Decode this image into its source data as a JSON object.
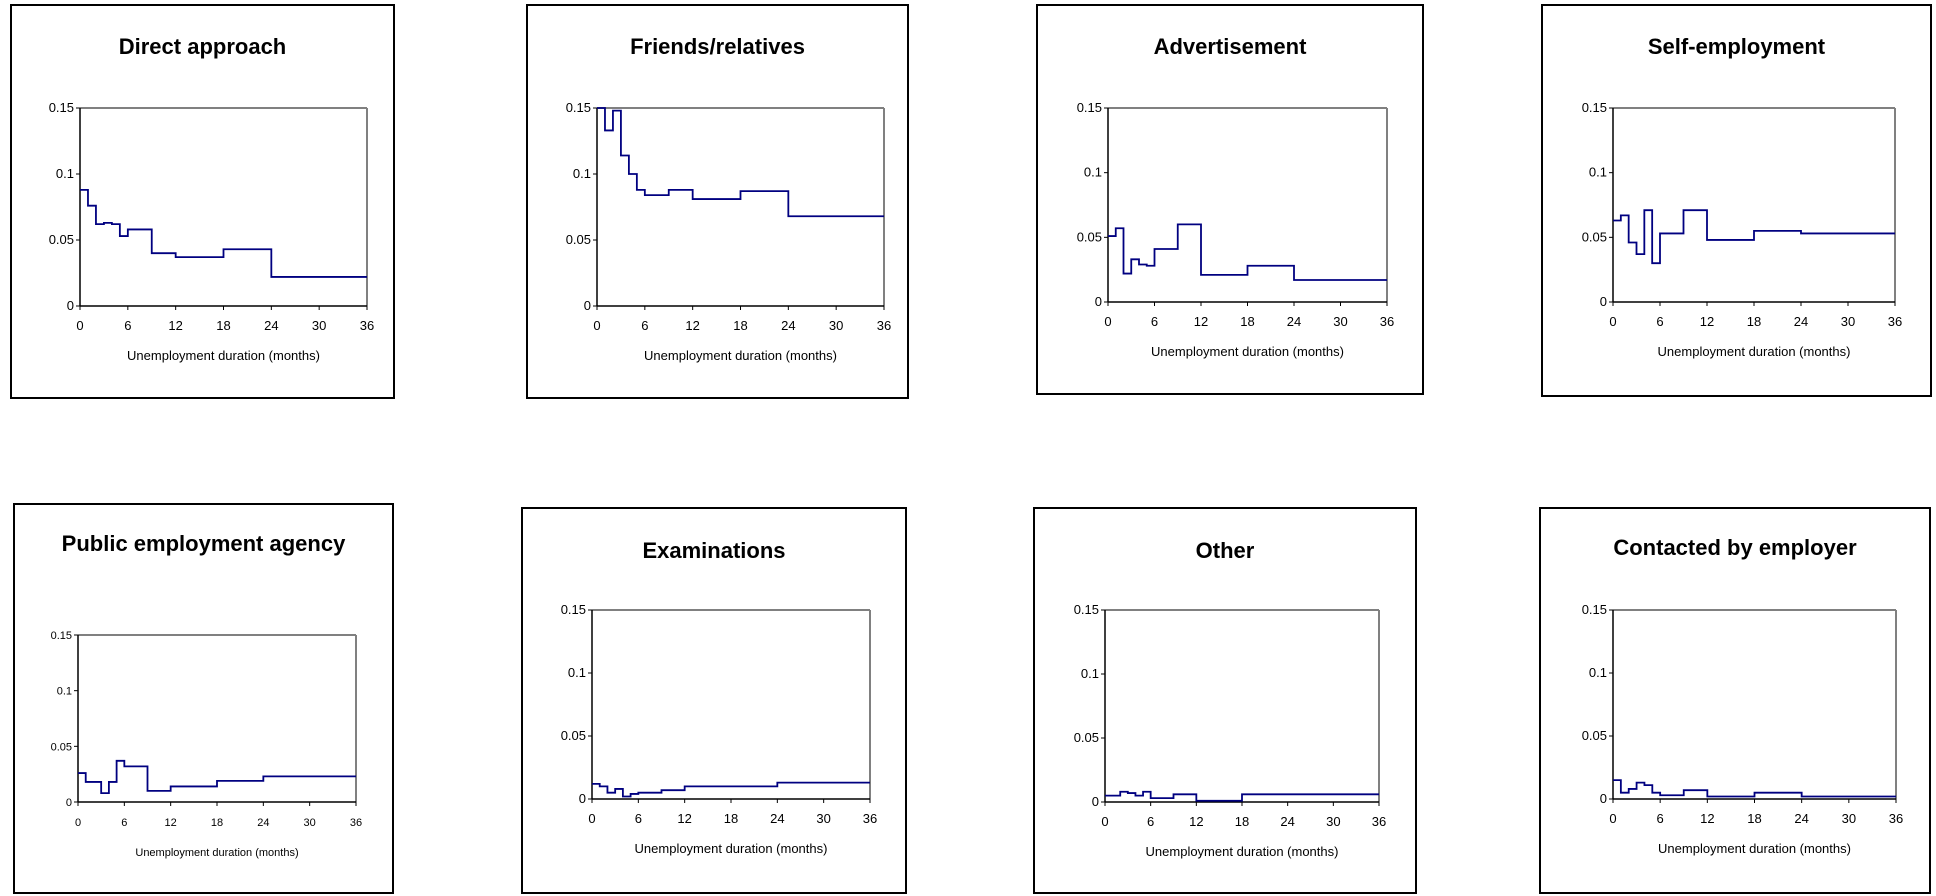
{
  "chart_data": [
    {
      "type": "line",
      "title": "Direct approach",
      "xlabel": "Unemployment duration (months)",
      "ylabel": "",
      "xlim": [
        0,
        36
      ],
      "ylim": [
        0,
        0.15
      ],
      "xticks": [
        "0",
        "6",
        "12",
        "18",
        "24",
        "30",
        "36"
      ],
      "yticks": [
        "0",
        "0.05",
        "0.1",
        "0.15"
      ],
      "step": true,
      "series": [
        {
          "x": [
            0,
            1,
            2,
            3,
            4,
            5,
            6,
            9,
            12,
            18,
            24,
            36
          ],
          "y": [
            0.088,
            0.076,
            0.062,
            0.063,
            0.062,
            0.053,
            0.058,
            0.04,
            0.037,
            0.043,
            0.022,
            0.022
          ]
        }
      ]
    },
    {
      "type": "line",
      "title": "Friends/relatives",
      "xlabel": "Unemployment duration (months)",
      "ylabel": "",
      "xlim": [
        0,
        36
      ],
      "ylim": [
        0,
        0.15
      ],
      "xticks": [
        "0",
        "6",
        "12",
        "18",
        "24",
        "30",
        "36"
      ],
      "yticks": [
        "0",
        "0.05",
        "0.1",
        "0.15"
      ],
      "step": true,
      "series": [
        {
          "x": [
            0,
            1,
            2,
            3,
            4,
            5,
            6,
            9,
            12,
            18,
            24,
            36
          ],
          "y": [
            0.15,
            0.133,
            0.148,
            0.114,
            0.1,
            0.088,
            0.084,
            0.088,
            0.081,
            0.087,
            0.068,
            0.061
          ]
        }
      ]
    },
    {
      "type": "line",
      "title": "Advertisement",
      "xlabel": "Unemployment duration (months)",
      "ylabel": "",
      "xlim": [
        0,
        36
      ],
      "ylim": [
        0,
        0.15
      ],
      "xticks": [
        "0",
        "6",
        "12",
        "18",
        "24",
        "30",
        "36"
      ],
      "yticks": [
        "0",
        "0.05",
        "0.1",
        "0.15"
      ],
      "step": true,
      "series": [
        {
          "x": [
            0,
            1,
            2,
            3,
            4,
            5,
            6,
            9,
            12,
            18,
            24,
            36
          ],
          "y": [
            0.051,
            0.057,
            0.022,
            0.033,
            0.029,
            0.028,
            0.041,
            0.06,
            0.021,
            0.028,
            0.017,
            0.017
          ]
        }
      ]
    },
    {
      "type": "line",
      "title": "Self-employment",
      "xlabel": "Unemployment duration (months)",
      "ylabel": "",
      "xlim": [
        0,
        36
      ],
      "ylim": [
        0,
        0.15
      ],
      "xticks": [
        "0",
        "6",
        "12",
        "18",
        "24",
        "30",
        "36"
      ],
      "yticks": [
        "0",
        "0.05",
        "0.1",
        "0.15"
      ],
      "step": true,
      "series": [
        {
          "x": [
            0,
            1,
            2,
            3,
            4,
            5,
            6,
            9,
            12,
            18,
            24,
            36
          ],
          "y": [
            0.063,
            0.067,
            0.046,
            0.037,
            0.071,
            0.03,
            0.053,
            0.071,
            0.048,
            0.055,
            0.053,
            0.053
          ]
        }
      ]
    },
    {
      "type": "line",
      "title": "Public employment agency",
      "xlabel": "Unemployment duration (months)",
      "ylabel": "",
      "xlim": [
        0,
        36
      ],
      "ylim": [
        0,
        0.15
      ],
      "xticks": [
        "0",
        "6",
        "12",
        "18",
        "24",
        "30",
        "36"
      ],
      "yticks": [
        "0",
        "0.05",
        "0.1",
        "0.15"
      ],
      "step": true,
      "series": [
        {
          "x": [
            0,
            1,
            2,
            3,
            4,
            5,
            6,
            9,
            12,
            18,
            24,
            36
          ],
          "y": [
            0.026,
            0.018,
            0.018,
            0.008,
            0.018,
            0.037,
            0.032,
            0.01,
            0.014,
            0.019,
            0.023,
            0.023
          ]
        }
      ]
    },
    {
      "type": "line",
      "title": "Examinations",
      "xlabel": "Unemployment duration (months)",
      "ylabel": "",
      "xlim": [
        0,
        36
      ],
      "ylim": [
        0,
        0.15
      ],
      "xticks": [
        "0",
        "6",
        "12",
        "18",
        "24",
        "30",
        "36"
      ],
      "yticks": [
        "0",
        "0.05",
        "0.1",
        "0.15"
      ],
      "step": true,
      "series": [
        {
          "x": [
            0,
            1,
            2,
            3,
            4,
            5,
            6,
            9,
            12,
            18,
            24,
            36
          ],
          "y": [
            0.012,
            0.01,
            0.005,
            0.008,
            0.002,
            0.004,
            0.005,
            0.007,
            0.01,
            0.01,
            0.013,
            0.013
          ]
        }
      ]
    },
    {
      "type": "line",
      "title": "Other",
      "xlabel": "Unemployment duration (months)",
      "ylabel": "",
      "xlim": [
        0,
        36
      ],
      "ylim": [
        0,
        0.15
      ],
      "xticks": [
        "0",
        "6",
        "12",
        "18",
        "24",
        "30",
        "36"
      ],
      "yticks": [
        "0",
        "0.05",
        "0.1",
        "0.15"
      ],
      "step": true,
      "series": [
        {
          "x": [
            0,
            1,
            2,
            3,
            4,
            5,
            6,
            9,
            12,
            18,
            24,
            36
          ],
          "y": [
            0.005,
            0.005,
            0.008,
            0.007,
            0.005,
            0.008,
            0.003,
            0.006,
            0.001,
            0.006,
            0.006,
            0.006
          ]
        }
      ]
    },
    {
      "type": "line",
      "title": "Contacted by employer",
      "xlabel": "Unemployment duration (months)",
      "ylabel": "",
      "xlim": [
        0,
        36
      ],
      "ylim": [
        0,
        0.15
      ],
      "xticks": [
        "0",
        "6",
        "12",
        "18",
        "24",
        "30",
        "36"
      ],
      "yticks": [
        "0",
        "0.05",
        "0.1",
        "0.15"
      ],
      "step": true,
      "series": [
        {
          "x": [
            0,
            1,
            2,
            3,
            4,
            5,
            6,
            9,
            12,
            18,
            24,
            36
          ],
          "y": [
            0.015,
            0.005,
            0.008,
            0.013,
            0.011,
            0.005,
            0.003,
            0.007,
            0.002,
            0.005,
            0.002,
            0.002
          ]
        }
      ]
    }
  ],
  "colors": {
    "line": "#000080",
    "frame": "#808080",
    "axis": "#000000"
  }
}
